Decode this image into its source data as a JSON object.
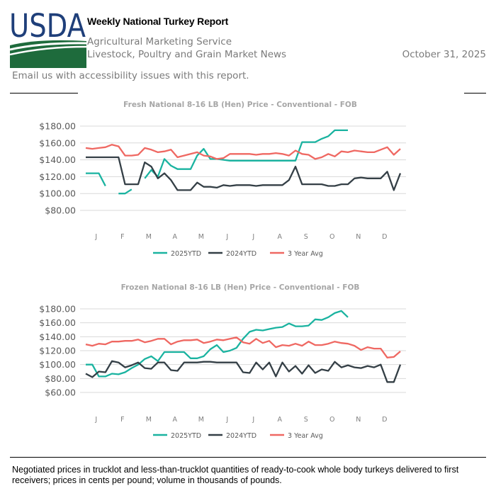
{
  "header": {
    "logo_text": "USDA",
    "title": "Weekly National Turkey Report",
    "agency": "Agricultural Marketing Service",
    "division": "Livestock, Poultry and Grain Market News",
    "date": "October 31, 2025",
    "email_link": "Email us with accessibility issues with this report."
  },
  "colors": {
    "s2025": "#1ab3a0",
    "s2024": "#343f46",
    "s3yr": "#ef6862",
    "logo_blue": "#1f3f7a",
    "logo_green": "#1e6b3c"
  },
  "footnote": "Negotiated prices in trucklot and less-than-trucklot quantities of ready-to-cook whole body turkeys delivered to first receivers; prices in cents per pound; volume in thousands of pounds.",
  "chart_data": [
    {
      "type": "line",
      "title": "Fresh National 8-16 LB (Hen) Price - Conventional - FOB",
      "x_tick_labels": [
        "J",
        "F",
        "M",
        "A",
        "M",
        "J",
        "J",
        "A",
        "S",
        "O",
        "N",
        "D"
      ],
      "y_tick_labels": [
        "$80.00",
        "$100.00",
        "$120.00",
        "$140.00",
        "$160.00",
        "$180.00"
      ],
      "ylim": [
        80,
        180
      ],
      "grid": true,
      "legend_placement": "bottom",
      "series": [
        {
          "name": "2025YTD",
          "values": [
            124,
            124,
            124,
            109,
            null,
            100,
            100,
            105,
            null,
            118,
            128,
            120,
            141,
            133,
            129,
            129,
            129,
            145,
            153,
            141,
            141,
            140,
            139,
            139,
            139,
            139,
            139,
            139,
            139,
            139,
            139,
            139,
            139,
            161,
            161,
            161,
            165,
            168,
            175,
            175,
            175
          ]
        },
        {
          "name": "2024YTD",
          "values": [
            143,
            143,
            143,
            143,
            143,
            143,
            111,
            111,
            111,
            137,
            132,
            118,
            124,
            116,
            104,
            104,
            104,
            113,
            108,
            108,
            107,
            110,
            109,
            110,
            110,
            110,
            109,
            110,
            110,
            110,
            110,
            116,
            132,
            111,
            111,
            111,
            111,
            109,
            109,
            111,
            111,
            118,
            119,
            118,
            118,
            118,
            126,
            104,
            124
          ]
        },
        {
          "name": "3 Year Avg",
          "values": [
            154,
            153,
            154,
            155,
            158,
            156,
            145,
            145,
            146,
            154,
            152,
            149,
            150,
            152,
            143,
            145,
            147,
            149,
            145,
            144,
            141,
            142,
            147,
            147,
            147,
            147,
            146,
            147,
            147,
            148,
            147,
            145,
            151,
            147,
            146,
            141,
            143,
            147,
            144,
            150,
            149,
            151,
            150,
            149,
            149,
            152,
            155,
            146,
            153
          ]
        }
      ]
    },
    {
      "type": "line",
      "title": "Frozen National 8-16 LB (Hen) Price - Conventional - FOB",
      "x_tick_labels": [
        "J",
        "F",
        "M",
        "A",
        "M",
        "J",
        "J",
        "A",
        "S",
        "O",
        "N",
        "D"
      ],
      "y_tick_labels": [
        "$60.00",
        "$80.00",
        "$100.00",
        "$120.00",
        "$140.00",
        "$160.00",
        "$180.00"
      ],
      "ylim": [
        60,
        180
      ],
      "grid": true,
      "legend_placement": "bottom",
      "series": [
        {
          "name": "2025YTD",
          "values": [
            100,
            100,
            83,
            83,
            87,
            86,
            89,
            95,
            100,
            108,
            112,
            105,
            118,
            118,
            118,
            118,
            109,
            109,
            112,
            122,
            128,
            118,
            120,
            124,
            137,
            147,
            150,
            149,
            151,
            153,
            154,
            159,
            155,
            155,
            156,
            165,
            164,
            168,
            174,
            177,
            168
          ]
        },
        {
          "name": "2024YTD",
          "values": [
            87,
            82,
            90,
            89,
            105,
            103,
            96,
            99,
            103,
            95,
            94,
            103,
            103,
            92,
            91,
            103,
            103,
            103,
            104,
            104,
            103,
            103,
            103,
            103,
            89,
            88,
            103,
            93,
            103,
            83,
            103,
            90,
            98,
            87,
            99,
            88,
            93,
            91,
            104,
            96,
            99,
            96,
            95,
            98,
            96,
            100,
            75,
            75,
            100
          ]
        },
        {
          "name": "3 Year Avg",
          "values": [
            129,
            127,
            130,
            129,
            133,
            133,
            134,
            134,
            136,
            132,
            134,
            137,
            137,
            129,
            133,
            135,
            135,
            136,
            131,
            133,
            136,
            135,
            137,
            139,
            132,
            130,
            137,
            131,
            134,
            125,
            128,
            127,
            130,
            127,
            133,
            128,
            128,
            130,
            133,
            131,
            130,
            127,
            121,
            125,
            123,
            123,
            110,
            111,
            119
          ]
        }
      ]
    }
  ]
}
